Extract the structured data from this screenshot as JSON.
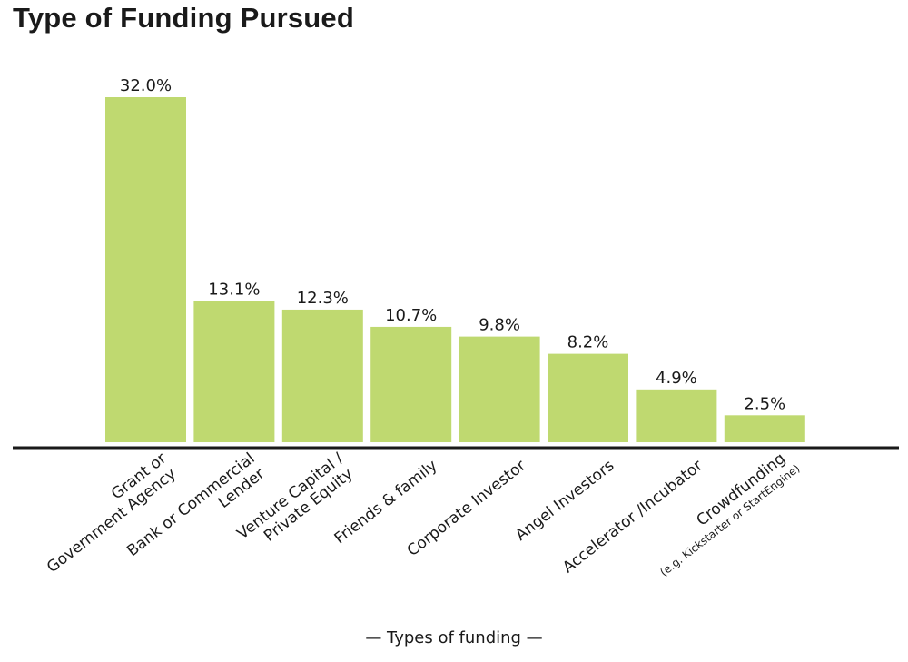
{
  "chart_data": {
    "type": "bar",
    "title": "Type of Funding Pursued",
    "xlabel": "— Types of funding —",
    "ylabel": "",
    "ylim": [
      0,
      33
    ],
    "grid": false,
    "bar_color": "#bfd970",
    "axis_color": "#1a1a1a",
    "categories": [
      [
        "Grant or",
        "Government Agency"
      ],
      [
        "Bank or Commercial",
        "Lender"
      ],
      [
        "Venture Capital /",
        "Private Equity"
      ],
      [
        "Friends & family"
      ],
      [
        "Corporate Investor"
      ],
      [
        "Angel Investors"
      ],
      [
        "Accelerator /Incubator"
      ],
      [
        "Crowdfunding",
        "(e.g. Kickstarter or StartEngine)"
      ]
    ],
    "values": [
      32.0,
      13.1,
      12.3,
      10.7,
      9.8,
      8.2,
      4.9,
      2.5
    ],
    "data_labels": [
      "32.0%",
      "13.1%",
      "12.3%",
      "10.7%",
      "9.8%",
      "8.2%",
      "4.9%",
      "2.5%"
    ]
  }
}
